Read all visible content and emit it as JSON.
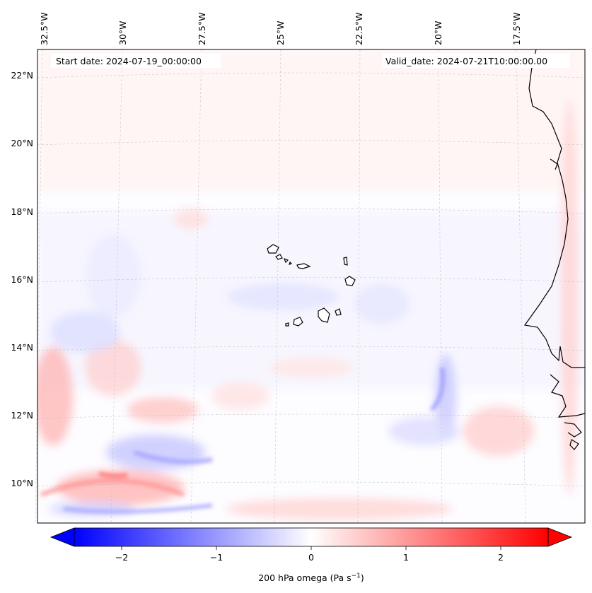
{
  "map": {
    "start_date": "Start date: 2024-07-19_00:00:00",
    "valid_date": "Valid_date: 2024-07-21T10:00:00.00",
    "lon_labels": [
      "32.5°W",
      "30°W",
      "27.5°W",
      "25°W",
      "22.5°W",
      "20°W",
      "17.5°W"
    ],
    "lat_labels": [
      "22°N",
      "20°N",
      "18°N",
      "16°N",
      "14°N",
      "12°N",
      "10°N"
    ],
    "field": "200 hPa omega",
    "colormap": "bwr",
    "colors": {
      "negative": "#0000ff",
      "zero": "#ffffff",
      "positive": "#ff0000",
      "coast": "#000000",
      "grid": "#bbbbbb"
    }
  },
  "colorbar": {
    "label_main": "200 hPa omega (Pa s",
    "label_exp": "−1",
    "label_close": ")",
    "min": -2.5,
    "max": 2.5,
    "extend": "both",
    "ticks": [
      {
        "value": -2,
        "label": "−2"
      },
      {
        "value": -1,
        "label": "−1"
      },
      {
        "value": 0,
        "label": "0"
      },
      {
        "value": 1,
        "label": "1"
      },
      {
        "value": 2,
        "label": "2"
      }
    ]
  }
}
